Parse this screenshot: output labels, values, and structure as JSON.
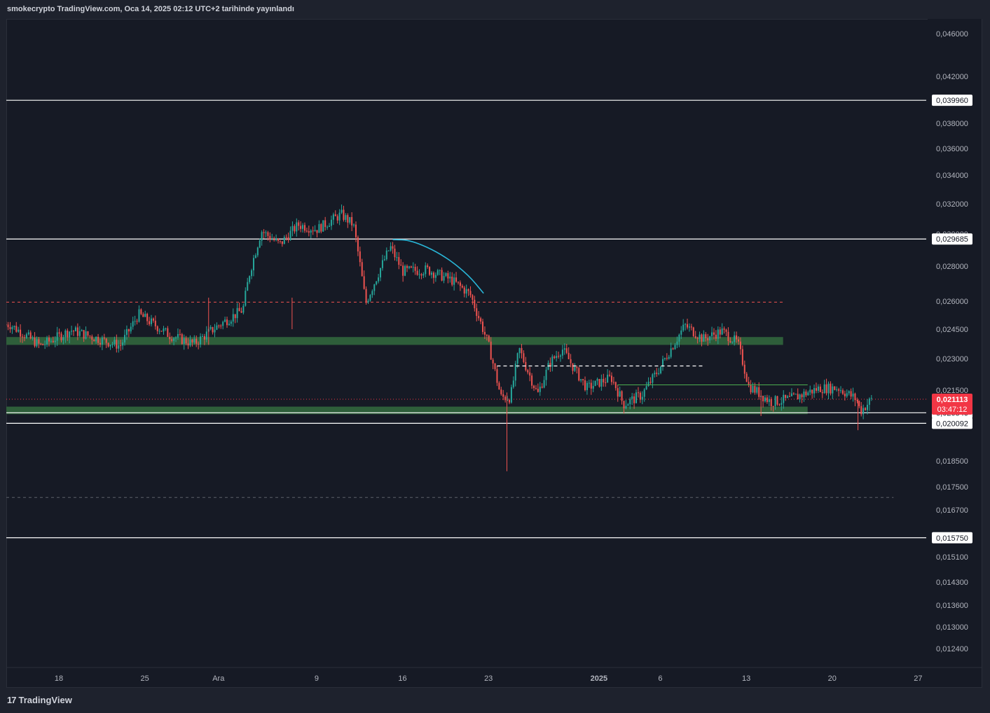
{
  "header": {
    "published_text": "smokecrypto TradingView.com, Oca 14, 2025 02:12 UTC+2 tarihinde yayınlandı"
  },
  "footer": {
    "logo_text": "TradingView"
  },
  "colors": {
    "up": "#26a69a",
    "down": "#ef5350",
    "zone": "#2e5e3a",
    "curve": "#29b6d8",
    "price_tag": "#f23645"
  },
  "chart_data": {
    "type": "candlestick",
    "title": "",
    "xlabel": "",
    "ylabel": "",
    "y_axis_side": "right",
    "y_tick_labels": [
      "0,046000",
      "0,042000",
      "0,038000",
      "0,036000",
      "0,034000",
      "0,032000",
      "0,030000",
      "0,028000",
      "0,026000",
      "0,024500",
      "0,023000",
      "0,021500",
      "0,018500",
      "0,017500",
      "0,016700",
      "0,015100",
      "0,014300",
      "0,013600",
      "0,013000",
      "0,012400"
    ],
    "y_tick_values": [
      0.046,
      0.042,
      0.038,
      0.036,
      0.034,
      0.032,
      0.03,
      0.028,
      0.026,
      0.0245,
      0.023,
      0.0215,
      0.0185,
      0.0175,
      0.0167,
      0.0151,
      0.0143,
      0.0136,
      0.013,
      0.0124
    ],
    "x_tick_labels": [
      "18",
      "25",
      "Ara",
      "9",
      "16",
      "23",
      "2025",
      "6",
      "13",
      "20",
      "27"
    ],
    "x_tick_days": [
      0,
      7,
      13,
      21,
      28,
      35,
      44,
      49,
      56,
      63,
      70
    ],
    "last_day_index": 56,
    "horizontal_levels": [
      {
        "price": 0.03996,
        "label": "0,039960",
        "style": "solid"
      },
      {
        "price": 0.029685,
        "label": "0,029685",
        "style": "solid"
      },
      {
        "price": 0.02054,
        "label": "0,020540",
        "style": "solid"
      },
      {
        "price": 0.020092,
        "label": "0,020092",
        "style": "solid"
      },
      {
        "price": 0.01575,
        "label": "0,015750",
        "style": "solid"
      }
    ],
    "current_price": {
      "price": 0.021113,
      "label": "0,021113",
      "countdown": "03:47:12"
    },
    "zones": [
      {
        "from": 0.0237,
        "to": 0.0241,
        "end_day": 59
      },
      {
        "from": 0.02048,
        "to": 0.0208,
        "end_day": 61
      }
    ],
    "dashed_levels": [
      {
        "price": 0.02595,
        "color": "#ef5350",
        "end_day": 59
      },
      {
        "price": 0.01713,
        "color": "#5d606b",
        "end_day": 68
      }
    ],
    "white_dashed_segment": {
      "price": 0.02265,
      "from_day": 35.7,
      "to_day": 52.5
    },
    "green_line_segment": {
      "price": 0.02175,
      "from_day": 45.5,
      "to_day": 61
    },
    "curve_points": [
      [
        27.2,
        0.02965
      ],
      [
        28.7,
        0.02962
      ],
      [
        31.2,
        0.02875
      ],
      [
        33.3,
        0.02755
      ],
      [
        34.6,
        0.02645
      ]
    ],
    "anchors": [
      [
        -4,
        0.02475
      ],
      [
        -1.5,
        0.02365
      ],
      [
        1,
        0.02445
      ],
      [
        3,
        0.02405
      ],
      [
        5,
        0.02365
      ],
      [
        6.5,
        0.0253
      ],
      [
        9,
        0.0242
      ],
      [
        11,
        0.02375
      ],
      [
        13,
        0.0247
      ],
      [
        15,
        0.02555
      ],
      [
        15.5,
        0.0275
      ],
      [
        16.5,
        0.0302
      ],
      [
        18,
        0.02935
      ],
      [
        19.5,
        0.0306
      ],
      [
        21,
        0.0303
      ],
      [
        23,
        0.0313
      ],
      [
        24,
        0.0306
      ],
      [
        25,
        0.0259
      ],
      [
        27,
        0.0292
      ],
      [
        28,
        0.0277
      ],
      [
        30,
        0.0278
      ],
      [
        32,
        0.0272
      ],
      [
        33.5,
        0.0264
      ],
      [
        35,
        0.0237
      ],
      [
        36,
        0.0212
      ],
      [
        36.8,
        0.0212
      ],
      [
        37.5,
        0.0235
      ],
      [
        38,
        0.0227
      ],
      [
        39,
        0.0213
      ],
      [
        40,
        0.0228
      ],
      [
        41,
        0.0235
      ],
      [
        42,
        0.0225
      ],
      [
        43,
        0.0216
      ],
      [
        45,
        0.0221
      ],
      [
        46,
        0.0209
      ],
      [
        47.5,
        0.0213
      ],
      [
        49,
        0.0226
      ],
      [
        51,
        0.0247
      ],
      [
        52.5,
        0.024
      ],
      [
        54,
        0.0244
      ],
      [
        55.3,
        0.0238
      ],
      [
        56.2,
        0.0217
      ],
      [
        58,
        0.021
      ],
      [
        59.5,
        0.0211
      ],
      [
        62,
        0.0216
      ],
      [
        63.5,
        0.0216
      ],
      [
        65,
        0.0211
      ],
      [
        65.3,
        0.0206
      ],
      [
        66.2,
        0.0211
      ]
    ]
  }
}
